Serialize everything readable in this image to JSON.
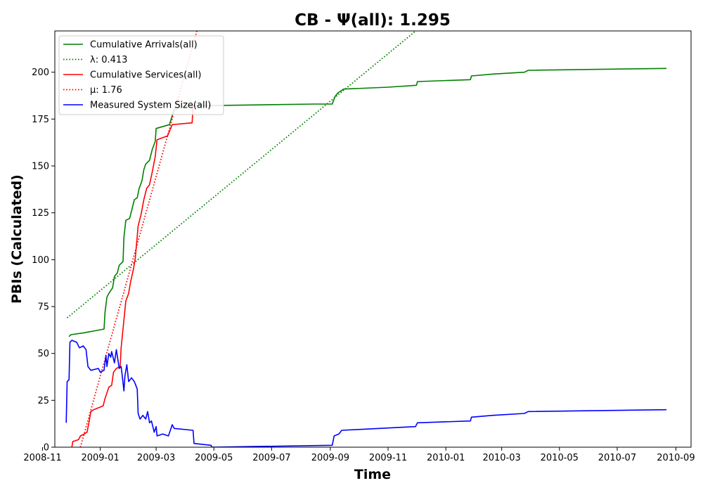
{
  "chart_data": {
    "type": "line",
    "title": "CB -  Ψ(all): 1.295",
    "xlabel": "Time",
    "ylabel": "PBIs (Calculated)",
    "xlim": [
      "2008-11-14",
      "2010-09-17"
    ],
    "ylim": [
      0,
      222
    ],
    "x_ticks": [
      "2008-11",
      "2009-01",
      "2009-03",
      "2009-05",
      "2009-07",
      "2009-09",
      "2009-11",
      "2010-01",
      "2010-03",
      "2010-05",
      "2010-07",
      "2010-09"
    ],
    "y_ticks": [
      0,
      25,
      50,
      75,
      100,
      125,
      150,
      175,
      200
    ],
    "grid": false,
    "legend_position": "top-left",
    "series": [
      {
        "name": "Cumulative Arrivals(all)",
        "color": "#008000",
        "style": "solid",
        "points": [
          [
            "2008-11-29",
            59
          ],
          [
            "2008-12-01",
            60
          ],
          [
            "2008-12-15",
            61
          ],
          [
            "2009-01-05",
            63
          ],
          [
            "2009-01-06",
            72
          ],
          [
            "2009-01-08",
            80
          ],
          [
            "2009-01-10",
            82
          ],
          [
            "2009-01-14",
            85
          ],
          [
            "2009-01-16",
            91
          ],
          [
            "2009-01-19",
            93
          ],
          [
            "2009-01-21",
            97
          ],
          [
            "2009-01-25",
            99
          ],
          [
            "2009-01-26",
            112
          ],
          [
            "2009-01-28",
            121
          ],
          [
            "2009-02-01",
            122
          ],
          [
            "2009-02-03",
            126
          ],
          [
            "2009-02-06",
            132
          ],
          [
            "2009-02-09",
            133
          ],
          [
            "2009-02-11",
            138
          ],
          [
            "2009-02-14",
            142
          ],
          [
            "2009-02-16",
            148
          ],
          [
            "2009-02-18",
            151
          ],
          [
            "2009-02-22",
            153
          ],
          [
            "2009-02-25",
            159
          ],
          [
            "2009-02-28",
            163
          ],
          [
            "2009-03-01",
            170
          ],
          [
            "2009-03-15",
            172
          ],
          [
            "2009-03-20",
            180
          ],
          [
            "2009-04-01",
            182
          ],
          [
            "2009-08-15",
            183
          ],
          [
            "2009-09-03",
            183
          ],
          [
            "2009-09-06",
            187
          ],
          [
            "2009-09-09",
            189
          ],
          [
            "2009-09-15",
            191
          ],
          [
            "2009-11-01",
            192
          ],
          [
            "2009-12-01",
            193
          ],
          [
            "2009-12-02",
            195
          ],
          [
            "2010-01-27",
            196
          ],
          [
            "2010-01-28",
            198
          ],
          [
            "2010-02-20",
            199
          ],
          [
            "2010-03-25",
            200
          ],
          [
            "2010-03-29",
            201
          ],
          [
            "2010-08-22",
            202
          ]
        ]
      },
      {
        "name": "λ: 0.413",
        "color": "#008000",
        "style": "dotted",
        "points": [
          [
            "2008-11-27",
            69
          ],
          [
            "2009-12-05",
            224
          ]
        ]
      },
      {
        "name": "Cumulative Services(all)",
        "color": "#ff0000",
        "style": "solid",
        "points": [
          [
            "2008-12-02",
            0
          ],
          [
            "2008-12-03",
            3
          ],
          [
            "2008-12-09",
            4
          ],
          [
            "2008-12-11",
            6
          ],
          [
            "2008-12-15",
            7
          ],
          [
            "2008-12-18",
            8
          ],
          [
            "2008-12-20",
            13
          ],
          [
            "2008-12-22",
            19
          ],
          [
            "2008-12-25",
            20
          ],
          [
            "2009-01-04",
            22
          ],
          [
            "2009-01-06",
            26
          ],
          [
            "2009-01-08",
            29
          ],
          [
            "2009-01-10",
            32
          ],
          [
            "2009-01-13",
            33
          ],
          [
            "2009-01-15",
            40
          ],
          [
            "2009-01-18",
            42
          ],
          [
            "2009-01-22",
            43
          ],
          [
            "2009-01-23",
            53
          ],
          [
            "2009-01-26",
            68
          ],
          [
            "2009-01-28",
            78
          ],
          [
            "2009-01-31",
            82
          ],
          [
            "2009-02-02",
            88
          ],
          [
            "2009-02-05",
            95
          ],
          [
            "2009-02-07",
            101
          ],
          [
            "2009-02-10",
            118
          ],
          [
            "2009-02-13",
            124
          ],
          [
            "2009-02-16",
            132
          ],
          [
            "2009-02-19",
            138
          ],
          [
            "2009-02-22",
            140
          ],
          [
            "2009-02-25",
            147
          ],
          [
            "2009-02-28",
            155
          ],
          [
            "2009-03-02",
            164
          ],
          [
            "2009-03-13",
            166
          ],
          [
            "2009-03-18",
            172
          ],
          [
            "2009-04-08",
            173
          ],
          [
            "2009-04-09",
            182
          ]
        ]
      },
      {
        "name": "μ: 1.76",
        "color": "#ff0000",
        "style": "dotted",
        "points": [
          [
            "2008-12-11",
            0
          ],
          [
            "2009-04-13",
            222
          ]
        ]
      },
      {
        "name": "Measured System Size(all)",
        "color": "#0000ff",
        "style": "solid",
        "points": [
          [
            "2008-11-26",
            13
          ],
          [
            "2008-11-27",
            35
          ],
          [
            "2008-11-29",
            36
          ],
          [
            "2008-11-30",
            56
          ],
          [
            "2008-12-02",
            57
          ],
          [
            "2008-12-07",
            56
          ],
          [
            "2008-12-10",
            53
          ],
          [
            "2008-12-14",
            54
          ],
          [
            "2008-12-17",
            52
          ],
          [
            "2008-12-19",
            43
          ],
          [
            "2008-12-22",
            41
          ],
          [
            "2008-12-30",
            42
          ],
          [
            "2009-01-01",
            40
          ],
          [
            "2009-01-05",
            41
          ],
          [
            "2009-01-07",
            49
          ],
          [
            "2009-01-08",
            43
          ],
          [
            "2009-01-10",
            50
          ],
          [
            "2009-01-12",
            48
          ],
          [
            "2009-01-13",
            51
          ],
          [
            "2009-01-16",
            45
          ],
          [
            "2009-01-18",
            52
          ],
          [
            "2009-01-21",
            42
          ],
          [
            "2009-01-23",
            43
          ],
          [
            "2009-01-24",
            39
          ],
          [
            "2009-01-26",
            30
          ],
          [
            "2009-01-27",
            38
          ],
          [
            "2009-01-29",
            44
          ],
          [
            "2009-01-31",
            35
          ],
          [
            "2009-02-03",
            37
          ],
          [
            "2009-02-06",
            35
          ],
          [
            "2009-02-09",
            31
          ],
          [
            "2009-02-10",
            18
          ],
          [
            "2009-02-12",
            15
          ],
          [
            "2009-02-15",
            17
          ],
          [
            "2009-02-18",
            15
          ],
          [
            "2009-02-20",
            19
          ],
          [
            "2009-02-22",
            13
          ],
          [
            "2009-02-24",
            14
          ],
          [
            "2009-02-27",
            8
          ],
          [
            "2009-03-01",
            11
          ],
          [
            "2009-03-02",
            6
          ],
          [
            "2009-03-08",
            7
          ],
          [
            "2009-03-14",
            6
          ],
          [
            "2009-03-18",
            12
          ],
          [
            "2009-03-20",
            10
          ],
          [
            "2009-04-09",
            9
          ],
          [
            "2009-04-10",
            2
          ],
          [
            "2009-04-28",
            1
          ],
          [
            "2009-04-29",
            0
          ],
          [
            "2009-09-03",
            1
          ],
          [
            "2009-09-05",
            6
          ],
          [
            "2009-09-10",
            7
          ],
          [
            "2009-09-13",
            9
          ],
          [
            "2009-11-30",
            11
          ],
          [
            "2009-12-02",
            13
          ],
          [
            "2010-01-27",
            14
          ],
          [
            "2010-01-28",
            16
          ],
          [
            "2010-02-20",
            17
          ],
          [
            "2010-03-25",
            18
          ],
          [
            "2010-03-29",
            19
          ],
          [
            "2010-08-22",
            20
          ]
        ]
      }
    ]
  }
}
